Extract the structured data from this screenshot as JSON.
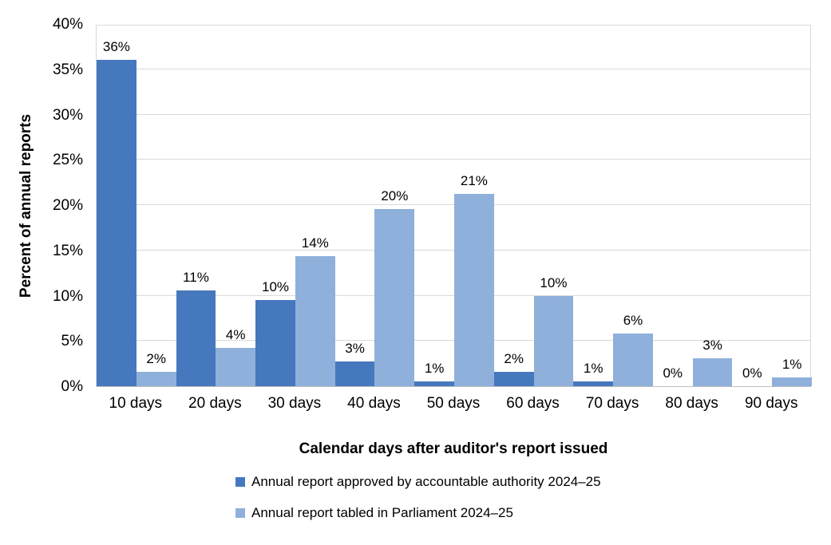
{
  "chart_data": {
    "type": "bar",
    "title": "",
    "xlabel": "Calendar days after auditor's report issued",
    "ylabel": "Percent of annual reports",
    "categories": [
      "10 days",
      "20 days",
      "30 days",
      "40 days",
      "50 days",
      "60 days",
      "70 days",
      "80 days",
      "90 days"
    ],
    "series": [
      {
        "name": "Annual report approved by accountable authority 2024–25",
        "color": "#4678BE",
        "values": [
          36.0,
          10.6,
          9.5,
          2.7,
          0.5,
          1.6,
          0.5,
          0,
          0
        ],
        "labels": [
          "36%",
          "11%",
          "10%",
          "3%",
          "1%",
          "2%",
          "1%",
          "0%",
          "0%"
        ]
      },
      {
        "name": "Annual report tabled in Parliament 2024–25",
        "color": "#8FB0DB",
        "values": [
          1.6,
          4.2,
          14.4,
          19.6,
          21.2,
          10.0,
          5.8,
          3.1,
          1.0
        ],
        "labels": [
          "2%",
          "4%",
          "14%",
          "20%",
          "21%",
          "10%",
          "6%",
          "3%",
          "1%"
        ]
      }
    ],
    "ylim": [
      0,
      40
    ],
    "ytick_step": 5,
    "ytick_labels": [
      "0%",
      "5%",
      "10%",
      "15%",
      "20%",
      "25%",
      "30%",
      "35%",
      "40%"
    ],
    "grid": true,
    "grid_color": "#D9D9D9",
    "legend_position": "bottom-left",
    "bar_gap": 0
  }
}
